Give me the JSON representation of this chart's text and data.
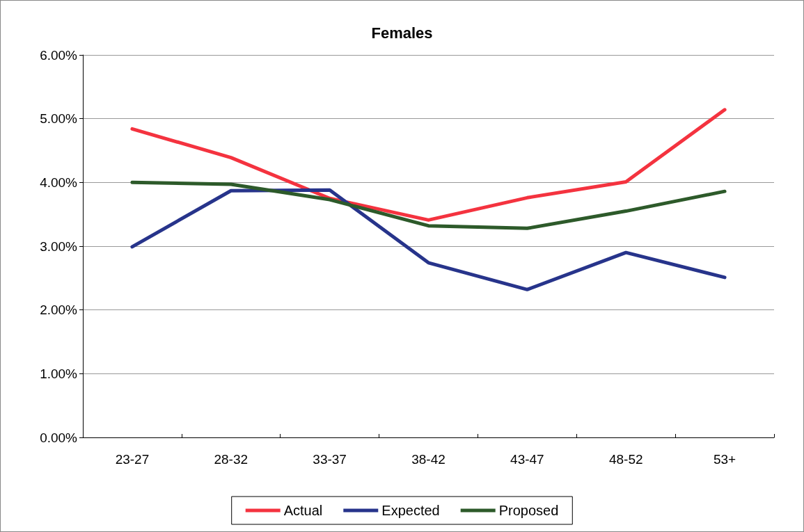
{
  "chart_data": {
    "type": "line",
    "title": "Females",
    "categories": [
      "23-27",
      "28-32",
      "33-37",
      "38-42",
      "43-47",
      "48-52",
      "53+"
    ],
    "series": [
      {
        "name": "Actual",
        "color": "#f4333f",
        "values": [
          4.84,
          4.39,
          3.75,
          3.41,
          3.76,
          4.01,
          5.14
        ]
      },
      {
        "name": "Expected",
        "color": "#27348b",
        "values": [
          2.99,
          3.87,
          3.88,
          2.74,
          2.32,
          2.9,
          2.51
        ]
      },
      {
        "name": "Proposed",
        "color": "#2d5a2a",
        "values": [
          4.0,
          3.97,
          3.73,
          3.32,
          3.28,
          3.55,
          3.86
        ]
      }
    ],
    "ylim": [
      0,
      6
    ],
    "yticks": [
      {
        "value": 0,
        "label": "0.00%"
      },
      {
        "value": 1,
        "label": "1.00%"
      },
      {
        "value": 2,
        "label": "2.00%"
      },
      {
        "value": 3,
        "label": "3.00%"
      },
      {
        "value": 4,
        "label": "4.00%"
      },
      {
        "value": 5,
        "label": "5.00%"
      },
      {
        "value": 6,
        "label": "6.00%"
      }
    ],
    "grid": "y",
    "legend": "bottom",
    "marker": "none",
    "line_style": "solid"
  }
}
